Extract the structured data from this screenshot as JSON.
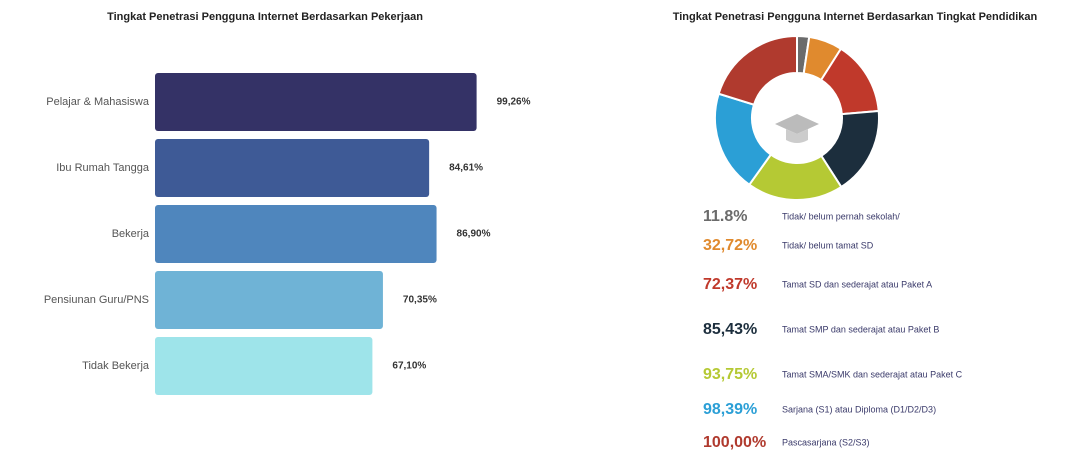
{
  "chart_data": [
    {
      "type": "hbar",
      "title": "Tingkat Penetrasi Pengguna Internet Berdasarkan Pekerjaan",
      "categories": [
        "Pelajar & Mahasiswa",
        "Ibu Rumah Tangga",
        "Bekerja",
        "Pensiunan Guru/PNS",
        "Tidak Bekerja"
      ],
      "values": [
        99.26,
        84.61,
        86.9,
        70.35,
        67.1
      ],
      "value_labels": [
        "99,26%",
        "84,61%",
        "86,90%",
        "70,35%",
        "67,10%"
      ],
      "colors": [
        "#343266",
        "#3e5a96",
        "#4f86bd",
        "#6fb3d6",
        "#9ee4ea"
      ],
      "xlim": [
        0,
        100
      ]
    },
    {
      "type": "donut",
      "title": "Tingkat Penetrasi Pengguna Internet Berdasarkan Tingkat Pendidikan",
      "categories": [
        "Tidak/ belum pernah sekolah/",
        "Tidak/ belum tamat SD",
        "Tamat SD dan sederajat atau Paket A",
        "Tamat SMP dan sederajat atau Paket B",
        "Tamat SMA/SMK dan sederajat atau Paket C",
        "Sarjana (S1) atau Diploma (D1/D2/D3)",
        "Pascasarjana (S2/S3)"
      ],
      "values": [
        11.8,
        32.72,
        72.37,
        85.43,
        93.75,
        98.39,
        100.0
      ],
      "value_labels": [
        "11.8%",
        "32,72%",
        "72,37%",
        "85,43%",
        "93,75%",
        "98,39%",
        "100,00%"
      ],
      "colors": [
        "#6b6b6b",
        "#e08a2e",
        "#c0392b",
        "#1c2e3d",
        "#b5c934",
        "#2b9fd6",
        "#b03a2e"
      ]
    }
  ]
}
